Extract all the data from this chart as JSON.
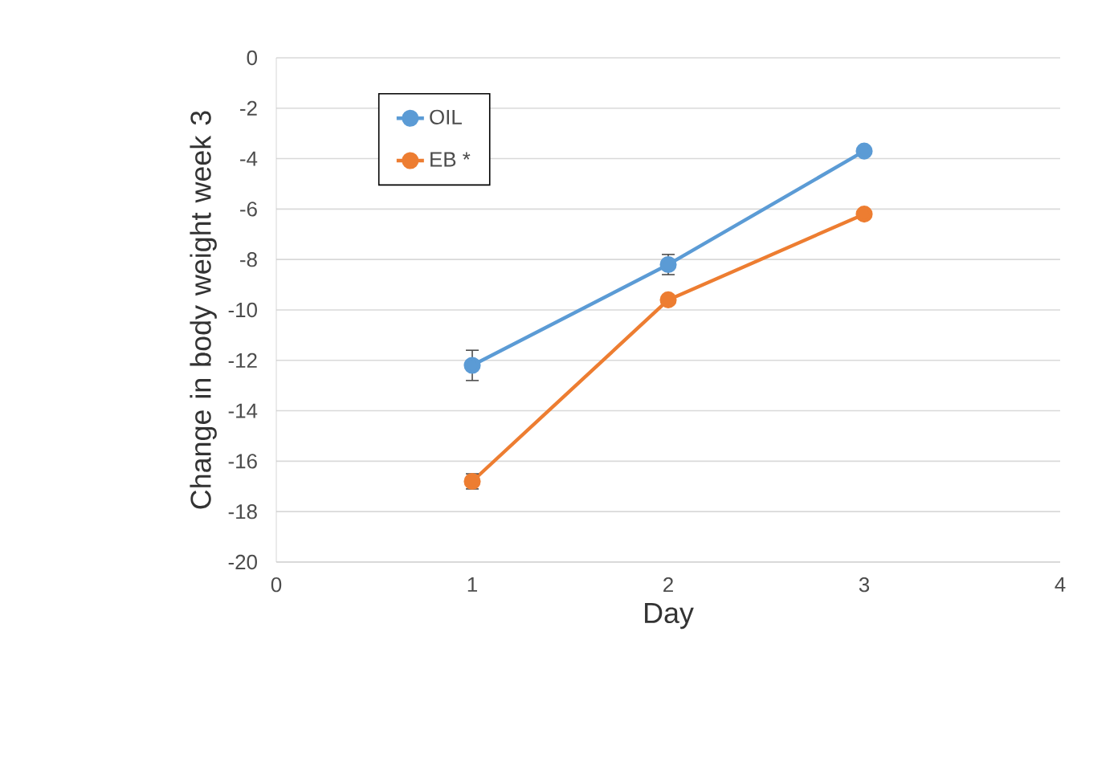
{
  "chart_data": {
    "type": "line",
    "xlabel": "Day",
    "ylabel": "Change in body weight week 3",
    "x": [
      1,
      2,
      3
    ],
    "series": [
      {
        "name": "OIL",
        "color": "#5b9bd5",
        "values": [
          -12.2,
          -8.2,
          -3.7
        ],
        "errors": [
          0.6,
          0.4,
          null
        ]
      },
      {
        "name": "EB *",
        "color": "#ed7d31",
        "values": [
          -16.8,
          -9.6,
          -6.2
        ],
        "errors": [
          0.3,
          null,
          null
        ]
      }
    ],
    "xlim": [
      0,
      4
    ],
    "xticks": [
      0,
      1,
      2,
      3,
      4
    ],
    "ylim": [
      -20,
      0
    ],
    "yticks": [
      -20,
      -18,
      -16,
      -14,
      -12,
      -10,
      -8,
      -6,
      -4,
      -2,
      0
    ],
    "grid": "y",
    "legend": "top left",
    "marker": "circle",
    "line_style": "solid"
  }
}
